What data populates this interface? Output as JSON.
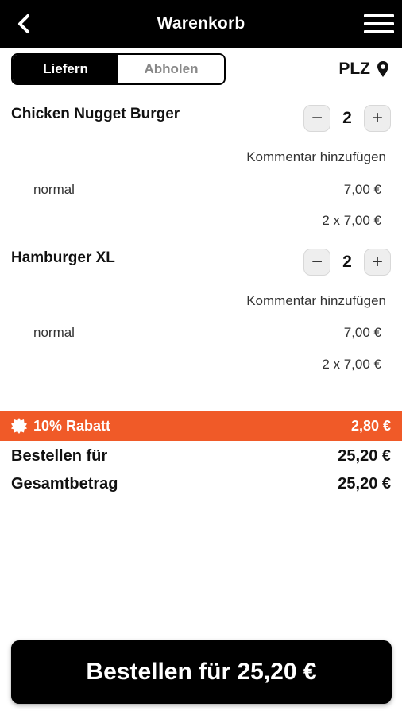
{
  "header": {
    "title": "Warenkorb",
    "back_icon": "chevron-left-icon",
    "menu_icon": "hamburger-menu-icon"
  },
  "delivery_toggle": {
    "deliver_label": "Liefern",
    "pickup_label": "Abholen",
    "selected": "Liefern"
  },
  "postcode": {
    "label": "PLZ",
    "icon": "map-pin-icon"
  },
  "items": [
    {
      "name": "Chicken Nugget Burger",
      "quantity": "2",
      "comment_label": "Kommentar hinzufügen",
      "variant": "normal",
      "unit_price": "7,00 €",
      "line_total": "2 x 7,00 €"
    },
    {
      "name": "Hamburger XL",
      "quantity": "2",
      "comment_label": "Kommentar hinzufügen",
      "variant": "normal",
      "unit_price": "7,00 €",
      "line_total": "2 x 7,00 €"
    }
  ],
  "stepper": {
    "minus": "−",
    "plus": "+"
  },
  "discount": {
    "label": "10% Rabatt",
    "amount": "2,80 €",
    "icon": "badge-burst-icon",
    "color": "#f05a28"
  },
  "totals": {
    "order_for_label": "Bestellen für",
    "order_for_value": "25,20 €",
    "total_label": "Gesamtbetrag",
    "total_value": "25,20 €"
  },
  "checkout_button": {
    "label": "Bestellen für 25,20 €"
  }
}
